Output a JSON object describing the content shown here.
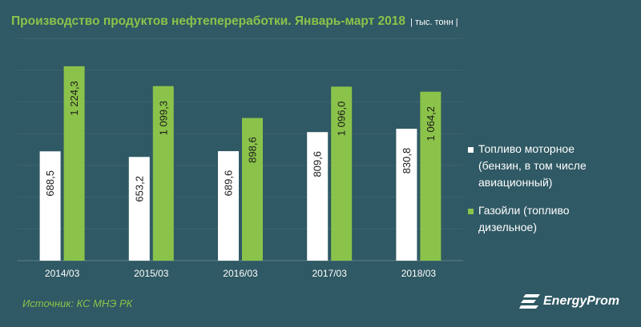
{
  "header": {
    "title": "Производство продуктов нефтепереработки. Январь-март 2018",
    "unit": "| тыс. тонн |"
  },
  "colors": {
    "background": "#2f5964",
    "series1": "#ffffff",
    "series2": "#8bc34a",
    "accent": "#8bc34a"
  },
  "chart_data": {
    "type": "bar",
    "title": "Производство продуктов нефтепереработки. Январь-март 2018",
    "categories": [
      "2014/03",
      "2015/03",
      "2016/03",
      "2017/03",
      "2018/03"
    ],
    "series": [
      {
        "name": "Топливо моторное (бензин, в том числе авиационный)",
        "color": "#ffffff",
        "values": [
          688.5,
          653.2,
          689.6,
          809.6,
          830.8
        ],
        "labels": [
          "688,5",
          "653,2",
          "689,6",
          "809,6",
          "830,8"
        ]
      },
      {
        "name": "Газойли (топливо дизельное)",
        "color": "#8bc34a",
        "values": [
          1224.3,
          1099.3,
          898.6,
          1096.0,
          1064.2
        ],
        "labels": [
          "1 224,3",
          "1 099,3",
          "898,6",
          "1 096,0",
          "1 064,2"
        ]
      }
    ],
    "ylim": [
      0,
      1400
    ],
    "grid": true,
    "legend_position": "right"
  },
  "legend": {
    "items": [
      {
        "label_lines": [
          "Топливо моторное",
          "(бензин, в том числе",
          "авиационный)"
        ]
      },
      {
        "label_lines": [
          "Газойли (топливо",
          "дизельное)"
        ]
      }
    ]
  },
  "footer": {
    "source": "Источник: КС МНЭ РК",
    "logo_text": "EnergyProm"
  }
}
